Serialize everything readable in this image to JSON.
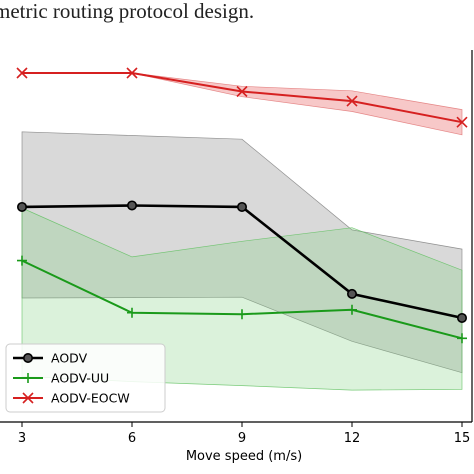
{
  "caption_fragment": "metric routing protocol design.",
  "chart_data": {
    "type": "line",
    "title": "",
    "xlabel": "Move speed (m/s)",
    "ylabel": "",
    "x": [
      3,
      6,
      9,
      12,
      15
    ],
    "xlim": [
      2.5,
      15
    ],
    "ylim": [
      0,
      1
    ],
    "grid": false,
    "legend_position": "lower-left",
    "series": [
      {
        "name": "AODV",
        "marker": "circle",
        "color": "#000000",
        "values": [
          0.638,
          0.642,
          0.638,
          0.403,
          0.338
        ],
        "lower": [
          0.392,
          0.393,
          0.394,
          0.275,
          0.19
        ],
        "upper": [
          0.841,
          0.831,
          0.821,
          0.576,
          0.524
        ]
      },
      {
        "name": "AODV-UU",
        "marker": "plus",
        "color": "#1a9a1a",
        "values": [
          0.493,
          0.352,
          0.348,
          0.36,
          0.283
        ],
        "lower": [
          0.18,
          0.166,
          0.155,
          0.143,
          0.145
        ],
        "upper": [
          0.635,
          0.503,
          0.545,
          0.582,
          0.467
        ]
      },
      {
        "name": "AODV-EOCW",
        "marker": "x",
        "color": "#d62020",
        "values": [
          1.0,
          1.0,
          0.95,
          0.924,
          0.867
        ],
        "lower": [
          1.0,
          1.0,
          0.936,
          0.896,
          0.833
        ],
        "upper": [
          1.0,
          1.0,
          0.964,
          0.952,
          0.901
        ]
      }
    ]
  }
}
